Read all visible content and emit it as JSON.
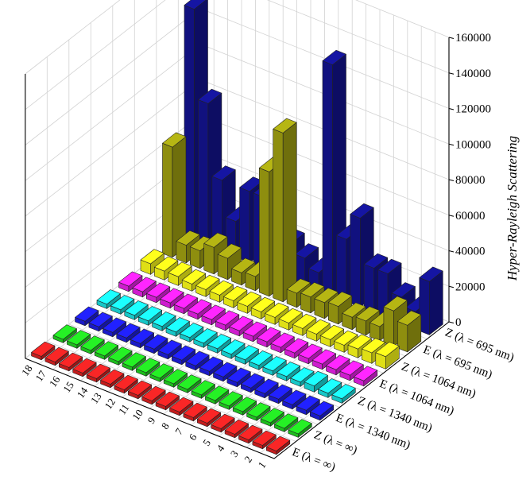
{
  "chart_data": {
    "type": "bar3d",
    "title": "",
    "zlabel": "Hyper-Rayleigh Scattering",
    "zlim": [
      0,
      160000
    ],
    "z_ticks": [
      0,
      20000,
      40000,
      60000,
      80000,
      100000,
      120000,
      140000,
      160000
    ],
    "grid": true,
    "x_categories": [
      "1",
      "2",
      "3",
      "4",
      "5",
      "6",
      "7",
      "8",
      "9",
      "10",
      "11",
      "12",
      "13",
      "14",
      "15",
      "16",
      "17",
      "18"
    ],
    "series": [
      {
        "name": "E (λ = ∞)",
        "color": "#d42020",
        "values": [
          2000,
          2000,
          2000,
          2000,
          2000,
          2000,
          2000,
          2000,
          2000,
          2000,
          2000,
          2000,
          2000,
          2000,
          2000,
          2000,
          2000,
          2000
        ]
      },
      {
        "name": "Z (λ = ∞)",
        "color": "#1fcc1f",
        "values": [
          2000,
          2000,
          2000,
          2000,
          2000,
          2000,
          2000,
          2000,
          2000,
          2000,
          2000,
          2000,
          2000,
          2000,
          2000,
          2000,
          2000,
          2000
        ]
      },
      {
        "name": "E (λ = 1340 nm)",
        "color": "#1c1cd8",
        "values": [
          2500,
          2500,
          2500,
          2500,
          2500,
          2500,
          2500,
          2500,
          2500,
          2500,
          2500,
          2500,
          2500,
          2500,
          2500,
          2500,
          2500,
          2500
        ]
      },
      {
        "name": "Z (λ = 1340 nm)",
        "color": "#18d8d8",
        "values": [
          2500,
          2500,
          3500,
          2500,
          2500,
          2500,
          2500,
          2500,
          2500,
          2500,
          2500,
          2500,
          2500,
          2500,
          2500,
          2500,
          2500,
          2500
        ]
      },
      {
        "name": "E (λ = 1064 nm)",
        "color": "#e020e0",
        "values": [
          3000,
          3000,
          3000,
          3000,
          3000,
          3000,
          3000,
          3000,
          3000,
          3000,
          3000,
          3000,
          3000,
          3000,
          3000,
          3000,
          3000,
          3000
        ]
      },
      {
        "name": "Z (λ = 1064 nm)",
        "color": "#f2f218",
        "values": [
          7000,
          6000,
          5000,
          4000,
          4000,
          4000,
          4000,
          4000,
          4000,
          4000,
          4000,
          4000,
          4000,
          4000,
          4000,
          5000,
          5000,
          6000
        ]
      },
      {
        "name": "E (λ = 695 nm)",
        "color": "#9a9a10",
        "values": [
          15000,
          20000,
          8000,
          8000,
          7000,
          10000,
          9000,
          9000,
          8000,
          95000,
          70000,
          8000,
          7000,
          12000,
          15000,
          10000,
          10000,
          62000
        ]
      },
      {
        "name": "Z (λ = 695 nm)",
        "color": "#12128a",
        "values": [
          30000,
          10000,
          15000,
          25000,
          25000,
          50000,
          35000,
          130000,
          10000,
          15000,
          20000,
          40000,
          40000,
          40000,
          20000,
          40000,
          80000,
          130000
        ]
      }
    ]
  }
}
